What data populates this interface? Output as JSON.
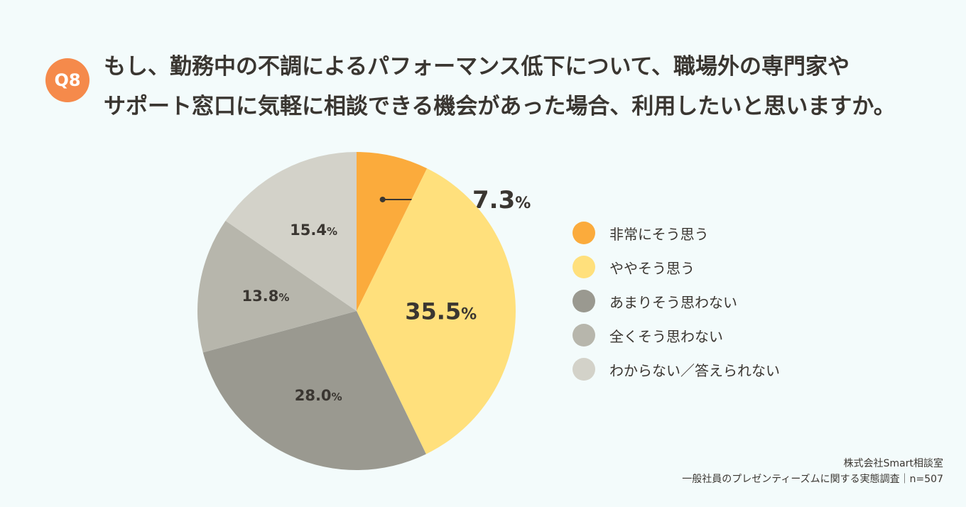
{
  "header": {
    "badge": "Q8",
    "title_line1": "もし、勤務中の不調によるパフォーマンス低下について、職場外の専門家や",
    "title_line2": "サポート窓口に気軽に相談できる機会があった場合、利用したいと思いますか。"
  },
  "chart_data": {
    "type": "pie",
    "unit": "%",
    "start_angle_deg": 0,
    "direction": "clockwise",
    "legend_placement": "right",
    "slices": [
      {
        "label": "非常にそう思う",
        "value": 7.3,
        "color": "#fbab3c"
      },
      {
        "label": "ややそう思う",
        "value": 35.5,
        "color": "#ffe07c"
      },
      {
        "label": "あまりそう思わない",
        "value": 28.0,
        "color": "#9a9990"
      },
      {
        "label": "全くそう思わない",
        "value": 13.8,
        "color": "#b7b6ac"
      },
      {
        "label": "わからない／答えられない",
        "value": 15.4,
        "color": "#d3d2c9"
      }
    ]
  },
  "source": {
    "line1": "株式会社Smart相談室",
    "line2": "一般社員のプレゼンティーズムに関する実態調査｜n=507"
  }
}
